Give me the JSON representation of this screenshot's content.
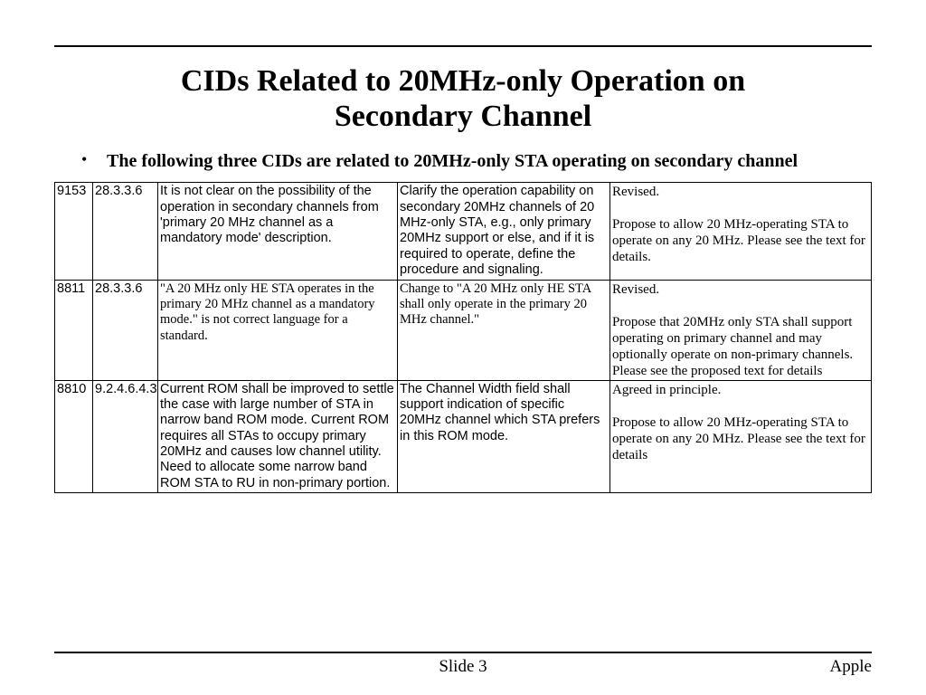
{
  "title_line1": "CIDs Related to 20MHz-only Operation on",
  "title_line2": "Secondary Channel",
  "bullet": "The following three CIDs are related to 20MHz-only STA operating on secondary channel",
  "rows": [
    {
      "cid": "9153",
      "clause": "28.3.3.6",
      "comment": "It is not clear on the possibility of the operation in secondary channels from 'primary 20 MHz channel as a mandatory mode' description.",
      "proposed": "Clarify the operation capability on secondary 20MHz channels of 20 MHz-only STA, e.g., only primary 20MHz support or else, and if it is required to operate, define the procedure and signaling.",
      "res_a": "Revised.",
      "res_b": "Propose to allow 20 MHz-operating STA to operate on any 20 MHz. Please see the text for details."
    },
    {
      "cid": "8811",
      "clause": "28.3.3.6",
      "comment": "\"A 20 MHz only HE STA operates in the primary 20 MHz channel as a mandatory mode.\" is not correct language for a standard.",
      "proposed": "Change to \"A 20 MHz only HE STA shall only operate in the primary 20 MHz channel.\"",
      "res_a": "Revised.",
      "res_b": "Propose that 20MHz only STA shall support operating on primary channel and may optionally operate on non-primary channels. Please see the proposed text for details"
    },
    {
      "cid": "8810",
      "clause": "9.2.4.6.4.3",
      "comment": "Current ROM shall be improved to settle the case with large number of STA in narrow band ROM mode. Current ROM requires all STAs to occupy primary 20MHz and causes low channel utility. Need to allocate some narrow band ROM STA to RU in non-primary portion.",
      "proposed": "The Channel Width field shall support indication of specific 20MHz channel which STA prefers in this ROM mode.",
      "res_a": "Agreed in principle.",
      "res_b": "Propose to allow 20 MHz-operating STA to operate on any 20 MHz. Please see the text for details"
    }
  ],
  "footer": {
    "left": "",
    "center": "Slide 3",
    "right": "Apple"
  }
}
